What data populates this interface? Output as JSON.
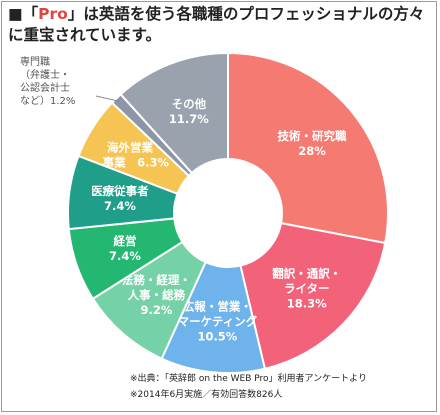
{
  "title": {
    "prefix": "■「",
    "highlight": "Pro",
    "rest": "」は英語を使う各職種のプロフェッショナルの方々に重宝されています。"
  },
  "chart_data": {
    "type": "pie",
    "title": "「Pro」は英語を使う各職種のプロフェッショナルの方々に重宝されています。",
    "slices": [
      {
        "label": "技術・研究職",
        "value": 28,
        "value_label": "28%",
        "color": "#f47a72"
      },
      {
        "label": "翻訳・通訳・ライター",
        "value": 18.3,
        "value_label": "18.3%",
        "color": "#f2637a"
      },
      {
        "label": "広報・営業・マーケティング",
        "value": 10.5,
        "value_label": "10.5%",
        "color": "#6fb3ec"
      },
      {
        "label": "法務・経理・人事・総務",
        "value": 9.2,
        "value_label": "9.2%",
        "color": "#74d2a6"
      },
      {
        "label": "経営",
        "value": 7.4,
        "value_label": "7.4%",
        "color": "#24b772"
      },
      {
        "label": "医療従事者",
        "value": 7.4,
        "value_label": "7.4%",
        "color": "#1f9f8a"
      },
      {
        "label": "海外営業・事業",
        "value": 6.3,
        "value_label": "6.3%",
        "color": "#f6c453"
      },
      {
        "label": "専門職（弁護士・公認会計士など）",
        "value": 1.2,
        "value_label": "1.2%",
        "color": "#8c96a6"
      },
      {
        "label": "その他",
        "value": 11.7,
        "value_label": "11.7%",
        "color": "#99a2ad"
      }
    ],
    "display_labels": [
      [
        "技術・研究職",
        "28%"
      ],
      [
        "翻訳・通訳・",
        "ライター",
        "18.3%"
      ],
      [
        "広報・営業・",
        "マーケティング",
        "10.5%"
      ],
      [
        "法務・経理・",
        "人事・総務",
        "9.2%"
      ],
      [
        "経営",
        "7.4%"
      ],
      [
        "医療従事者",
        "7.4%"
      ],
      [
        "海外営業・",
        "事業　6.3%"
      ],
      [],
      [
        "その他",
        "11.7%"
      ]
    ],
    "small_label": "専門職\n（弁護士・\n公認会計士\nなど）1.2%"
  },
  "footnotes": [
    "※出典：「英辞郎 on the WEB Pro」利用者アンケートより",
    "※2014年6月実施／有効回答数826人"
  ]
}
